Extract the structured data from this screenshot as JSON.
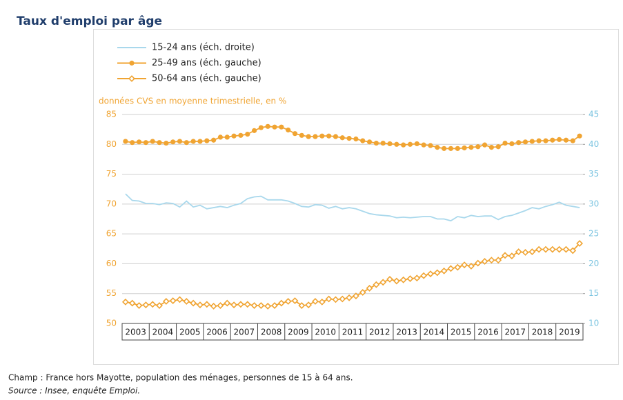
{
  "chart_data": {
    "type": "line",
    "title": "Taux d'emploi par âge",
    "y_label": "données CVS en moyenne trimestrielle, en %",
    "x": [
      2003.125,
      2003.375,
      2003.625,
      2003.875,
      2004.125,
      2004.375,
      2004.625,
      2004.875,
      2005.125,
      2005.375,
      2005.625,
      2005.875,
      2006.125,
      2006.375,
      2006.625,
      2006.875,
      2007.125,
      2007.375,
      2007.625,
      2007.875,
      2008.125,
      2008.375,
      2008.625,
      2008.875,
      2009.125,
      2009.375,
      2009.625,
      2009.875,
      2010.125,
      2010.375,
      2010.625,
      2010.875,
      2011.125,
      2011.375,
      2011.625,
      2011.875,
      2012.125,
      2012.375,
      2012.625,
      2012.875,
      2013.125,
      2013.375,
      2013.625,
      2013.875,
      2014.125,
      2014.375,
      2014.625,
      2014.875,
      2015.125,
      2015.375,
      2015.625,
      2015.875,
      2016.125,
      2016.375,
      2016.625,
      2016.875,
      2017.125,
      2017.375,
      2017.625,
      2017.875,
      2018.125,
      2018.375,
      2018.625,
      2018.875,
      2019.125,
      2019.375,
      2019.625,
      2019.875
    ],
    "xlim": [
      2003,
      2020
    ],
    "xticks": [
      2003,
      2004,
      2005,
      2006,
      2007,
      2008,
      2009,
      2010,
      2011,
      2012,
      2013,
      2014,
      2015,
      2016,
      2017,
      2018,
      2019
    ],
    "ylim": [
      50,
      85
    ],
    "yticks": [
      50,
      55,
      60,
      65,
      70,
      75,
      80,
      85
    ],
    "y2lim": [
      10,
      45
    ],
    "y2ticks": [
      10,
      15,
      20,
      25,
      30,
      35,
      40,
      45
    ],
    "grid": true,
    "legend": "top-left",
    "series": [
      {
        "name": "15-24 ans (éch. droite)",
        "color": "#a9d8ec",
        "marker": "none",
        "axis": "y2",
        "values": [
          31.7,
          30.6,
          30.5,
          30.1,
          30.1,
          29.9,
          30.2,
          30.1,
          29.5,
          30.5,
          29.5,
          29.8,
          29.2,
          29.4,
          29.6,
          29.4,
          29.8,
          30.1,
          30.9,
          31.2,
          31.3,
          30.7,
          30.7,
          30.7,
          30.5,
          30.1,
          29.6,
          29.5,
          29.9,
          29.8,
          29.3,
          29.6,
          29.2,
          29.4,
          29.2,
          28.8,
          28.4,
          28.2,
          28.1,
          28.0,
          27.7,
          27.8,
          27.7,
          27.8,
          27.9,
          27.9,
          27.5,
          27.5,
          27.2,
          27.9,
          27.7,
          28.1,
          27.9,
          28.0,
          28.0,
          27.4,
          27.9,
          28.1,
          28.5,
          28.9,
          29.4,
          29.2,
          29.6,
          29.9,
          30.3,
          29.8,
          29.6,
          29.4
        ]
      },
      {
        "name": "25-49 ans (éch. gauche)",
        "color": "#f0a432",
        "marker": "filled",
        "values": [
          80.5,
          80.3,
          80.4,
          80.3,
          80.5,
          80.3,
          80.2,
          80.4,
          80.5,
          80.3,
          80.5,
          80.5,
          80.6,
          80.7,
          81.2,
          81.2,
          81.4,
          81.5,
          81.7,
          82.3,
          82.8,
          83.0,
          82.9,
          82.9,
          82.4,
          81.8,
          81.5,
          81.3,
          81.3,
          81.4,
          81.4,
          81.3,
          81.1,
          81.0,
          80.9,
          80.6,
          80.4,
          80.2,
          80.2,
          80.1,
          80.0,
          79.9,
          80.0,
          80.1,
          79.9,
          79.8,
          79.5,
          79.3,
          79.3,
          79.3,
          79.4,
          79.5,
          79.6,
          79.9,
          79.5,
          79.6,
          80.2,
          80.1,
          80.3,
          80.4,
          80.5,
          80.6,
          80.6,
          80.7,
          80.8,
          80.7,
          80.6,
          81.4
        ]
      },
      {
        "name": "50-64 ans (éch. gauche)",
        "color": "#f0a432",
        "marker": "open-diamond",
        "values": [
          53.6,
          53.4,
          53.0,
          53.1,
          53.2,
          53.0,
          53.7,
          53.8,
          54.0,
          53.7,
          53.4,
          53.1,
          53.2,
          52.9,
          53.0,
          53.4,
          53.1,
          53.2,
          53.2,
          53.0,
          53.0,
          52.9,
          53.0,
          53.4,
          53.7,
          53.8,
          53.0,
          53.1,
          53.7,
          53.6,
          54.1,
          54.0,
          54.1,
          54.3,
          54.6,
          55.2,
          55.9,
          56.5,
          56.9,
          57.4,
          57.1,
          57.3,
          57.5,
          57.6,
          58.0,
          58.3,
          58.5,
          58.8,
          59.2,
          59.4,
          59.8,
          59.6,
          60.1,
          60.4,
          60.6,
          60.6,
          61.4,
          61.3,
          62.0,
          61.9,
          62.0,
          62.4,
          62.4,
          62.4,
          62.4,
          62.4,
          62.2,
          63.4
        ]
      }
    ]
  },
  "notes": [
    "Champ : France hors Mayotte, population des ménages, personnes de 15 à 64 ans.",
    "Source : Insee, enquête Emploi."
  ]
}
